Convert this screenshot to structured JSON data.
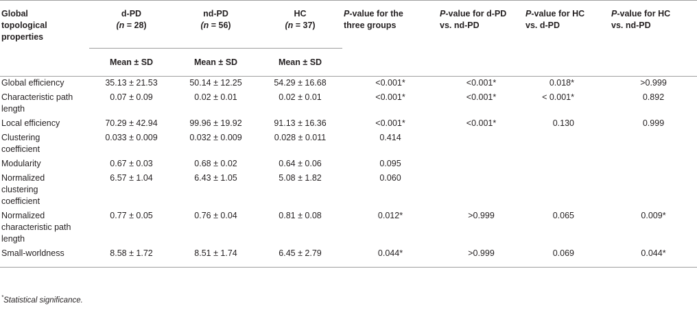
{
  "headers": {
    "col0": [
      "Global",
      "topological",
      "properties"
    ],
    "col1": [
      "d-PD",
      "(n = 28)"
    ],
    "col2": [
      "nd-PD",
      "(n = 56)"
    ],
    "col3": [
      "HC",
      "(n = 37)"
    ],
    "col4": [
      "P-value for the",
      "three groups"
    ],
    "col5": [
      "P-value for d-PD",
      "vs. nd-PD"
    ],
    "col6": [
      "P-value for HC",
      "vs. d-PD"
    ],
    "col7": [
      "P-value for HC",
      "vs. nd-PD"
    ],
    "sub": "Mean ± SD"
  },
  "rows": [
    {
      "label": [
        "Global efficiency"
      ],
      "dpd": "35.13 ± 21.53",
      "ndpd": "50.14 ± 12.25",
      "hc": "54.29 ± 16.68",
      "p3": "<0.001*",
      "pdn": "<0.001*",
      "phd": "0.018*",
      "phn": ">0.999"
    },
    {
      "label": [
        "Characteristic path",
        "length"
      ],
      "dpd": "0.07 ± 0.09",
      "ndpd": "0.02 ± 0.01",
      "hc": "0.02 ± 0.01",
      "p3": "<0.001*",
      "pdn": "<0.001*",
      "phd": "< 0.001*",
      "phn": "0.892"
    },
    {
      "label": [
        "Local efficiency"
      ],
      "dpd": "70.29 ± 42.94",
      "ndpd": "99.96 ± 19.92",
      "hc": "91.13 ± 16.36",
      "p3": "<0.001*",
      "pdn": "<0.001*",
      "phd": "0.130",
      "phn": "0.999"
    },
    {
      "label": [
        "Clustering",
        "coefficient"
      ],
      "dpd": "0.033 ± 0.009",
      "ndpd": "0.032 ± 0.009",
      "hc": "0.028 ± 0.011",
      "p3": "0.414",
      "pdn": "",
      "phd": "",
      "phn": ""
    },
    {
      "label": [
        "Modularity"
      ],
      "dpd": "0.67 ± 0.03",
      "ndpd": "0.68 ± 0.02",
      "hc": "0.64 ± 0.06",
      "p3": "0.095",
      "pdn": "",
      "phd": "",
      "phn": ""
    },
    {
      "label": [
        "Normalized",
        "clustering",
        "coefficient"
      ],
      "dpd": "6.57 ± 1.04",
      "ndpd": "6.43 ± 1.05",
      "hc": "5.08 ± 1.82",
      "p3": "0.060",
      "pdn": "",
      "phd": "",
      "phn": ""
    },
    {
      "label": [
        "Normalized",
        "characteristic path",
        "length"
      ],
      "dpd": "0.77 ± 0.05",
      "ndpd": "0.76 ± 0.04",
      "hc": "0.81 ± 0.08",
      "p3": "0.012*",
      "pdn": ">0.999",
      "phd": "0.065",
      "phn": "0.009*"
    },
    {
      "label": [
        "Small-worldness"
      ],
      "dpd": "8.58 ± 1.72",
      "ndpd": "8.51 ± 1.74",
      "hc": "6.45 ± 2.79",
      "p3": "0.044*",
      "pdn": ">0.999",
      "phd": "0.069",
      "phn": "0.044*"
    }
  ],
  "footnote": {
    "mark": "*",
    "text": "Statistical significance."
  }
}
